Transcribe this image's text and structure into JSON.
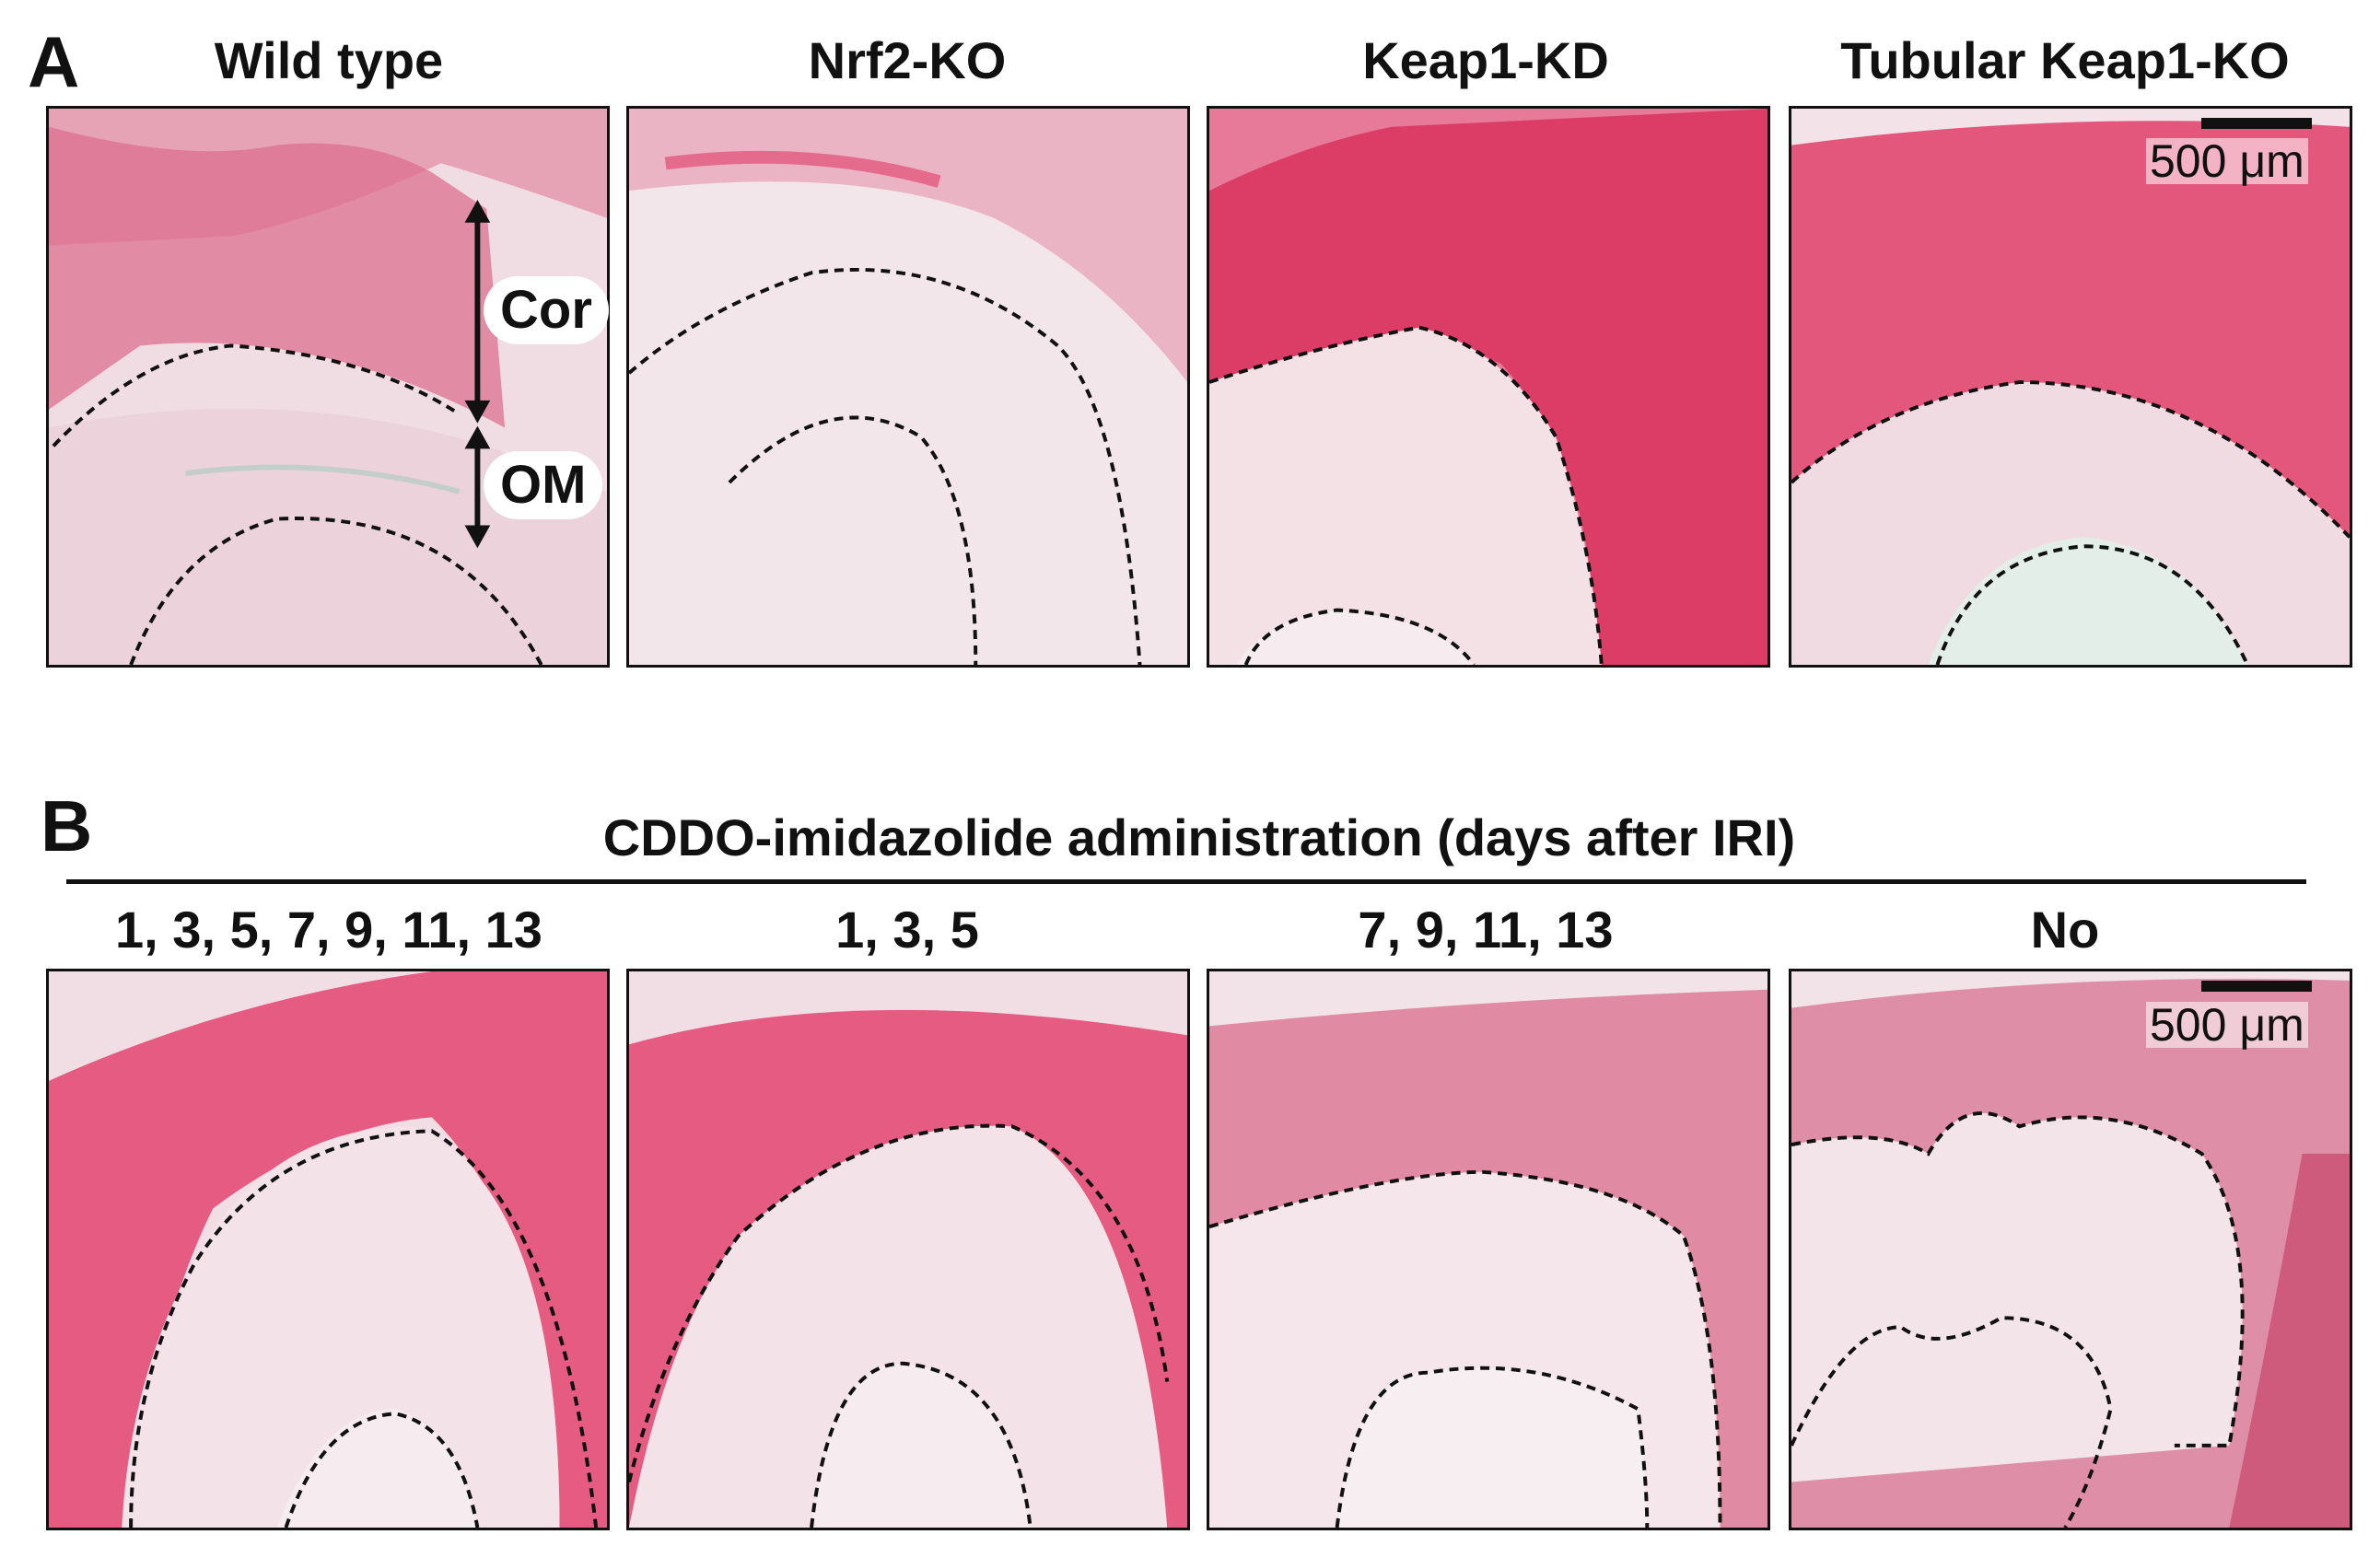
{
  "panel_a": {
    "letter": "A",
    "titles": [
      "Wild type",
      "Nrf2-KO",
      "Keap1-KD",
      "Tubular Keap1-KO"
    ],
    "scale_label": "500 μm",
    "annotations": {
      "cortex": "Cor",
      "outer_medulla": "OM"
    }
  },
  "panel_b": {
    "letter": "B",
    "header": "CDDO-imidazolide administration (days after IRI)",
    "titles": [
      "1, 3, 5, 7, 9, 11, 13",
      "1, 3, 5",
      "7, 9, 11, 13",
      "No"
    ],
    "scale_label": "500 μm"
  },
  "colors": {
    "stain_red": "#e0305e",
    "stain_pale": "#f0dde3",
    "stain_green": "#a9cbbf",
    "border": "#111111"
  }
}
